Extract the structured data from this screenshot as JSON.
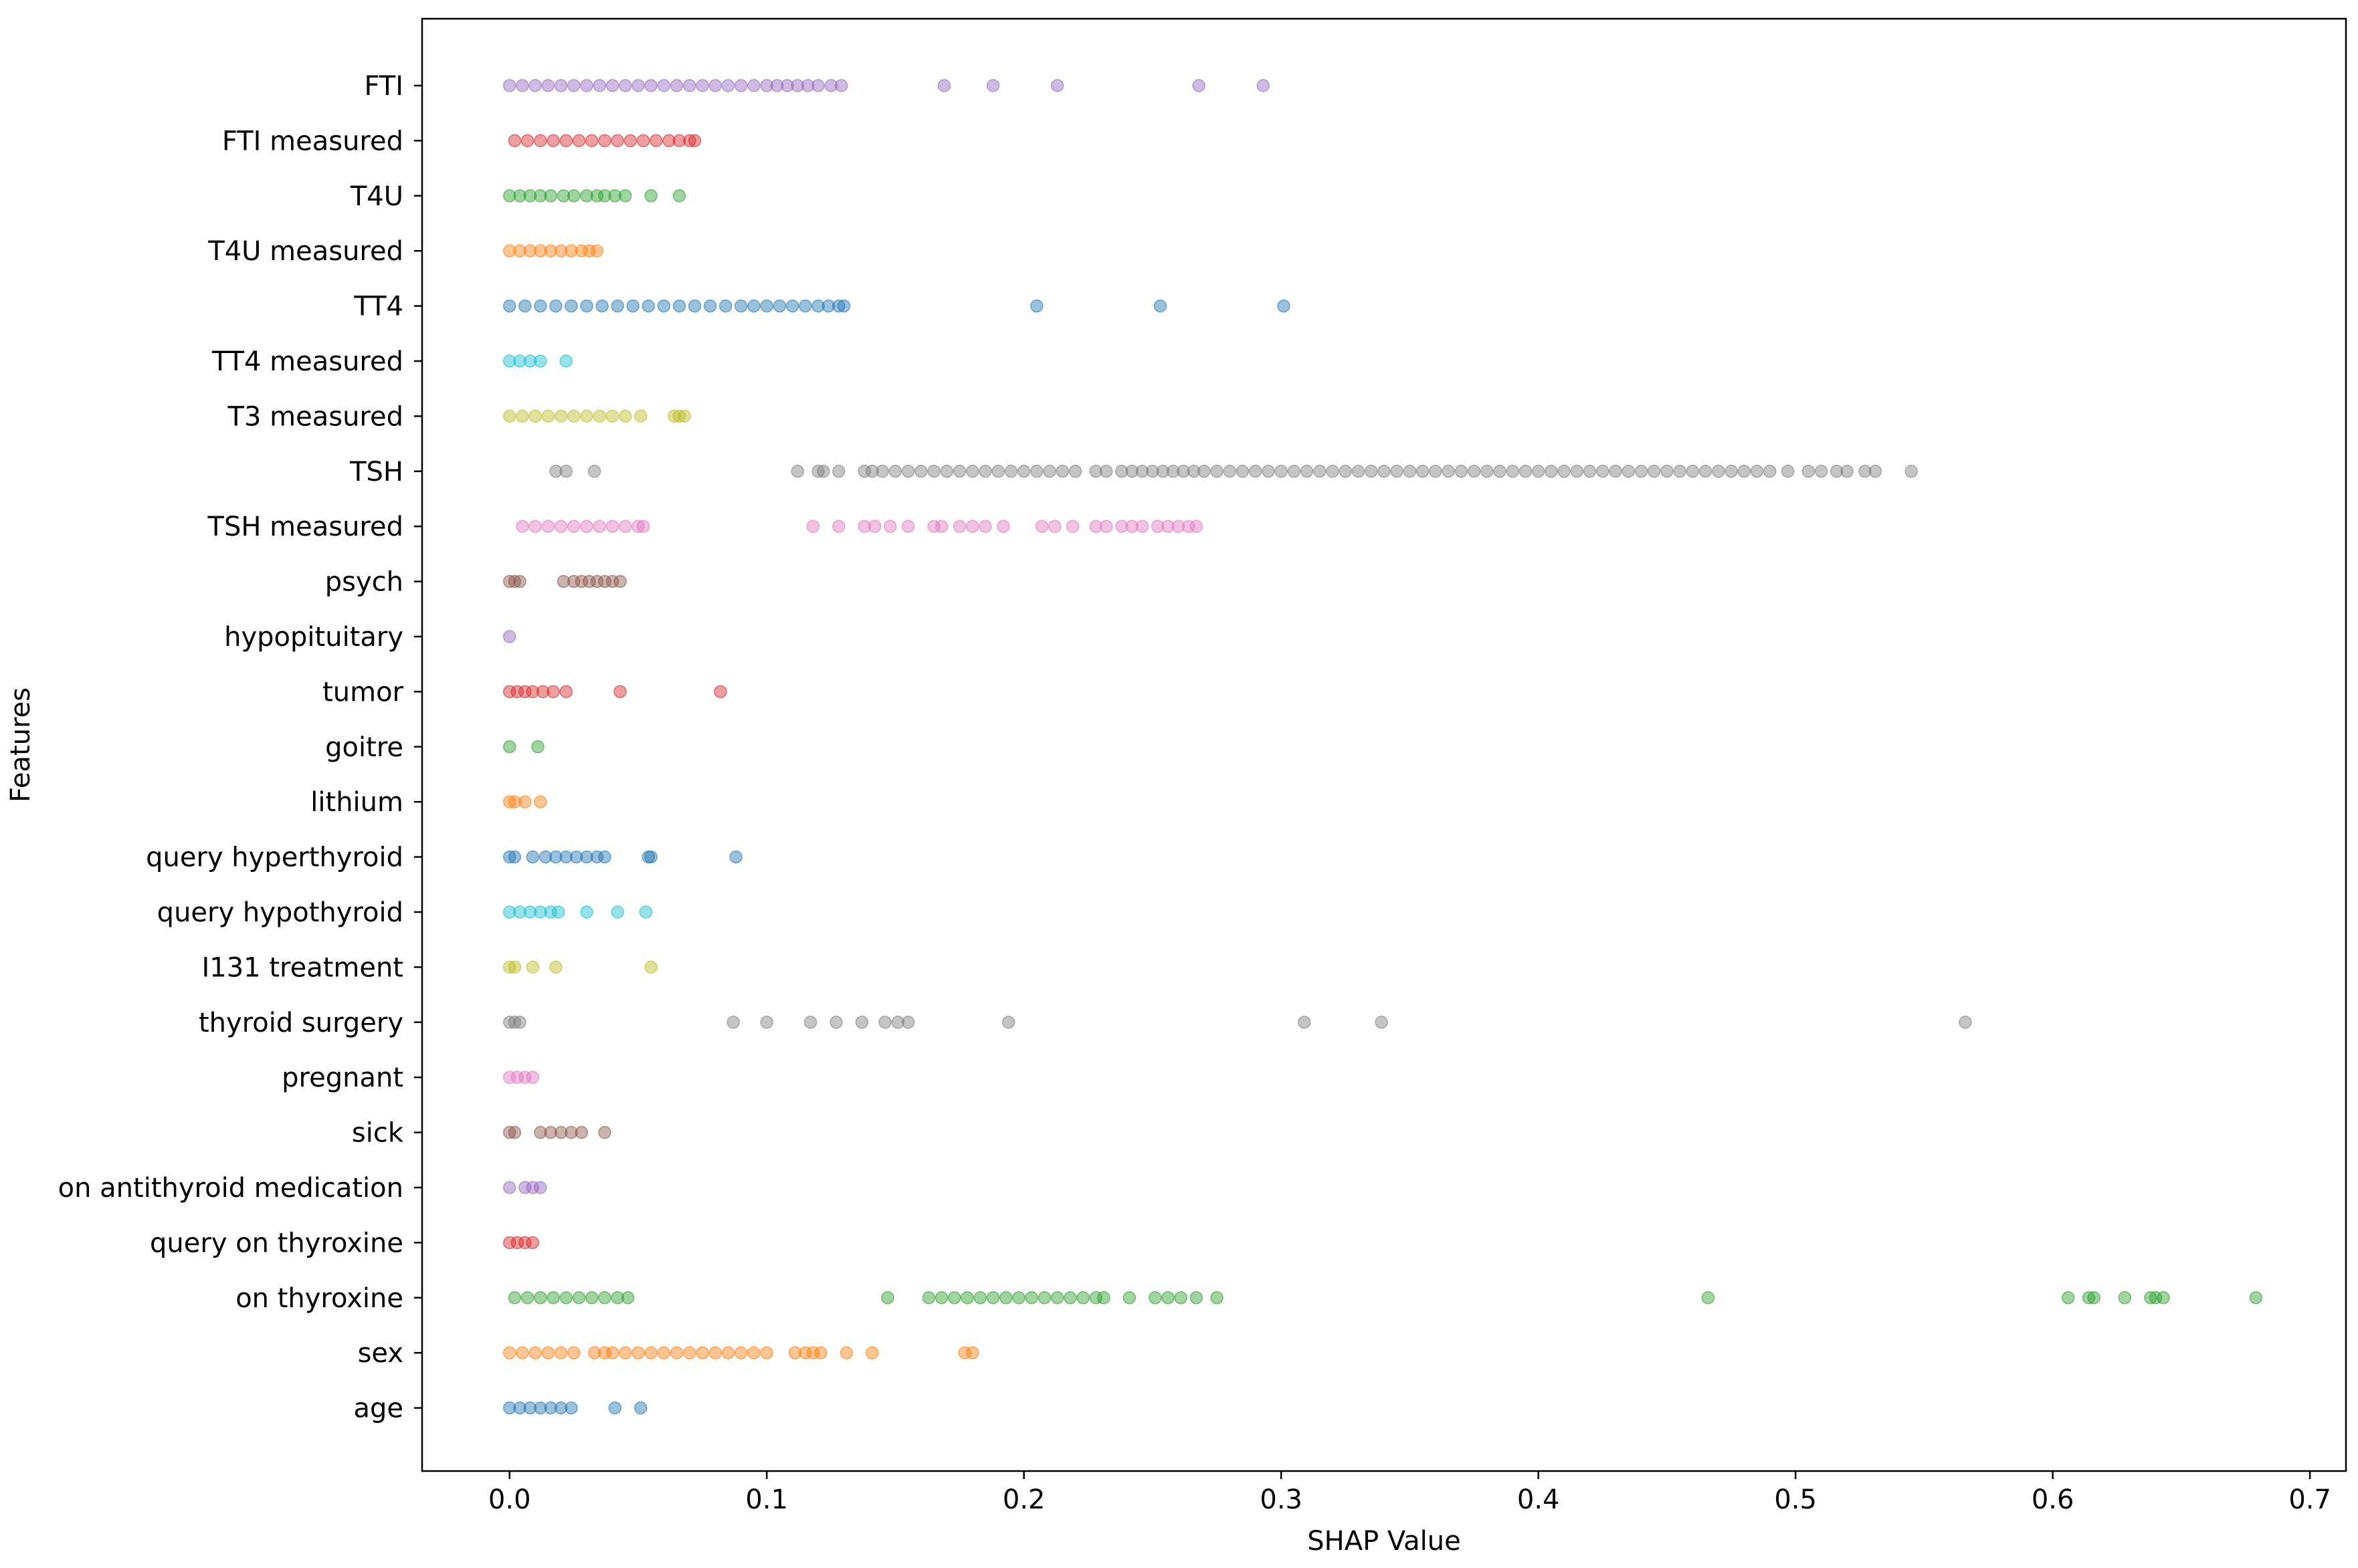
{
  "chart_data": {
    "type": "scatter",
    "xlabel": "SHAP Value",
    "ylabel": "Features",
    "xlim": [
      -0.034,
      0.714
    ],
    "xticks": [
      "0.0",
      "0.1",
      "0.2",
      "0.3",
      "0.4",
      "0.5",
      "0.6",
      "0.7"
    ],
    "grid": false,
    "point_opacity": 0.45,
    "series": [
      {
        "name": "FTI",
        "color": "#9467bd",
        "values": [
          0.0,
          0.005,
          0.01,
          0.015,
          0.02,
          0.025,
          0.03,
          0.035,
          0.04,
          0.045,
          0.05,
          0.055,
          0.06,
          0.065,
          0.07,
          0.075,
          0.08,
          0.085,
          0.09,
          0.095,
          0.1,
          0.104,
          0.108,
          0.112,
          0.116,
          0.12,
          0.125,
          0.129,
          0.169,
          0.188,
          0.213,
          0.268,
          0.293
        ]
      },
      {
        "name": "FTI measured",
        "color": "#d62728",
        "values": [
          0.002,
          0.007,
          0.012,
          0.017,
          0.022,
          0.027,
          0.032,
          0.037,
          0.042,
          0.047,
          0.052,
          0.057,
          0.062,
          0.066,
          0.07,
          0.072
        ]
      },
      {
        "name": "T4U",
        "color": "#2ca02c",
        "values": [
          0.0,
          0.004,
          0.008,
          0.012,
          0.016,
          0.021,
          0.025,
          0.03,
          0.034,
          0.037,
          0.041,
          0.045,
          0.055,
          0.066
        ]
      },
      {
        "name": "T4U measured",
        "color": "#ff7f0e",
        "values": [
          0.0,
          0.004,
          0.008,
          0.012,
          0.016,
          0.02,
          0.024,
          0.028,
          0.031,
          0.034
        ]
      },
      {
        "name": "TT4",
        "color": "#1f77b4",
        "values": [
          0.0,
          0.006,
          0.012,
          0.018,
          0.024,
          0.03,
          0.036,
          0.042,
          0.048,
          0.054,
          0.06,
          0.066,
          0.072,
          0.078,
          0.084,
          0.09,
          0.095,
          0.1,
          0.105,
          0.11,
          0.115,
          0.12,
          0.124,
          0.128,
          0.13,
          0.205,
          0.253,
          0.301
        ]
      },
      {
        "name": "TT4 measured",
        "color": "#17becf",
        "values": [
          0.0,
          0.004,
          0.008,
          0.012,
          0.022
        ]
      },
      {
        "name": "T3 measured",
        "color": "#bcbd22",
        "values": [
          0.0,
          0.005,
          0.01,
          0.015,
          0.02,
          0.025,
          0.03,
          0.035,
          0.04,
          0.045,
          0.051,
          0.064,
          0.066,
          0.068
        ]
      },
      {
        "name": "TSH",
        "color": "#7f7f7f",
        "values": [
          0.018,
          0.022,
          0.033,
          0.112,
          0.12,
          0.122,
          0.128,
          0.138,
          0.141,
          0.145,
          0.15,
          0.155,
          0.16,
          0.165,
          0.17,
          0.175,
          0.18,
          0.185,
          0.19,
          0.195,
          0.2,
          0.205,
          0.21,
          0.215,
          0.22,
          0.228,
          0.232,
          0.238,
          0.242,
          0.246,
          0.25,
          0.254,
          0.258,
          0.262,
          0.266,
          0.27,
          0.275,
          0.28,
          0.285,
          0.29,
          0.295,
          0.3,
          0.305,
          0.31,
          0.315,
          0.32,
          0.325,
          0.33,
          0.335,
          0.34,
          0.345,
          0.35,
          0.355,
          0.36,
          0.365,
          0.37,
          0.375,
          0.38,
          0.385,
          0.39,
          0.395,
          0.4,
          0.405,
          0.41,
          0.415,
          0.42,
          0.425,
          0.43,
          0.435,
          0.44,
          0.445,
          0.45,
          0.455,
          0.46,
          0.465,
          0.47,
          0.475,
          0.48,
          0.485,
          0.49,
          0.497,
          0.505,
          0.51,
          0.516,
          0.52,
          0.527,
          0.531,
          0.545
        ]
      },
      {
        "name": "TSH measured",
        "color": "#e377c2",
        "values": [
          0.005,
          0.01,
          0.015,
          0.02,
          0.025,
          0.03,
          0.035,
          0.04,
          0.045,
          0.05,
          0.052,
          0.118,
          0.128,
          0.138,
          0.142,
          0.148,
          0.155,
          0.165,
          0.168,
          0.175,
          0.18,
          0.185,
          0.192,
          0.207,
          0.212,
          0.219,
          0.228,
          0.232,
          0.238,
          0.242,
          0.246,
          0.252,
          0.256,
          0.26,
          0.264,
          0.267
        ]
      },
      {
        "name": "psych",
        "color": "#8c564b",
        "values": [
          0.0,
          0.002,
          0.004,
          0.021,
          0.025,
          0.028,
          0.031,
          0.034,
          0.037,
          0.04,
          0.043
        ]
      },
      {
        "name": "hypopituitary",
        "color": "#9467bd",
        "values": [
          0.0
        ]
      },
      {
        "name": "tumor",
        "color": "#d62728",
        "values": [
          0.0,
          0.003,
          0.006,
          0.009,
          0.013,
          0.017,
          0.022,
          0.043,
          0.082
        ]
      },
      {
        "name": "goitre",
        "color": "#2ca02c",
        "values": [
          0.0,
          0.011
        ]
      },
      {
        "name": "lithium",
        "color": "#ff7f0e",
        "values": [
          0.0,
          0.002,
          0.006,
          0.012
        ]
      },
      {
        "name": "query hyperthyroid",
        "color": "#1f77b4",
        "values": [
          0.0,
          0.002,
          0.009,
          0.014,
          0.018,
          0.022,
          0.026,
          0.03,
          0.034,
          0.037,
          0.054,
          0.055,
          0.088
        ]
      },
      {
        "name": "query hypothyroid",
        "color": "#17becf",
        "values": [
          0.0,
          0.004,
          0.008,
          0.012,
          0.016,
          0.019,
          0.03,
          0.042,
          0.053
        ]
      },
      {
        "name": "I131 treatment",
        "color": "#bcbd22",
        "values": [
          0.0,
          0.002,
          0.009,
          0.018,
          0.055
        ]
      },
      {
        "name": "thyroid surgery",
        "color": "#7f7f7f",
        "values": [
          0.0,
          0.002,
          0.004,
          0.087,
          0.1,
          0.117,
          0.127,
          0.137,
          0.146,
          0.151,
          0.155,
          0.194,
          0.309,
          0.339,
          0.566
        ]
      },
      {
        "name": "pregnant",
        "color": "#e377c2",
        "values": [
          0.0,
          0.003,
          0.006,
          0.009
        ]
      },
      {
        "name": "sick",
        "color": "#8c564b",
        "values": [
          0.0,
          0.002,
          0.012,
          0.016,
          0.02,
          0.024,
          0.028,
          0.037
        ]
      },
      {
        "name": "on antithyroid medication",
        "color": "#9467bd",
        "values": [
          0.0,
          0.006,
          0.009,
          0.012
        ]
      },
      {
        "name": "query on thyroxine",
        "color": "#d62728",
        "values": [
          0.0,
          0.003,
          0.006,
          0.009
        ]
      },
      {
        "name": "on thyroxine",
        "color": "#2ca02c",
        "values": [
          0.002,
          0.007,
          0.012,
          0.017,
          0.022,
          0.027,
          0.032,
          0.037,
          0.042,
          0.046,
          0.147,
          0.163,
          0.168,
          0.173,
          0.178,
          0.183,
          0.188,
          0.193,
          0.198,
          0.203,
          0.208,
          0.213,
          0.218,
          0.223,
          0.228,
          0.231,
          0.241,
          0.251,
          0.256,
          0.261,
          0.267,
          0.275,
          0.466,
          0.606,
          0.614,
          0.616,
          0.628,
          0.638,
          0.64,
          0.643,
          0.679
        ]
      },
      {
        "name": "sex",
        "color": "#ff7f0e",
        "values": [
          0.0,
          0.005,
          0.01,
          0.015,
          0.02,
          0.025,
          0.033,
          0.037,
          0.04,
          0.045,
          0.05,
          0.055,
          0.06,
          0.065,
          0.07,
          0.075,
          0.08,
          0.085,
          0.09,
          0.095,
          0.1,
          0.111,
          0.115,
          0.118,
          0.121,
          0.131,
          0.141,
          0.177,
          0.18
        ]
      },
      {
        "name": "age",
        "color": "#1f77b4",
        "values": [
          0.0,
          0.004,
          0.008,
          0.012,
          0.016,
          0.02,
          0.024,
          0.041,
          0.051
        ]
      }
    ]
  }
}
